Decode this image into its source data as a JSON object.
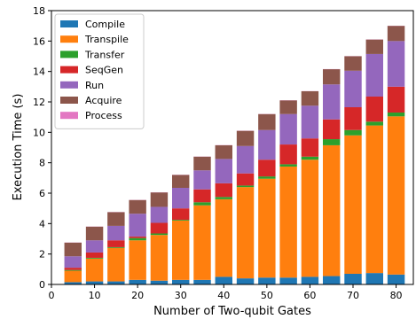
{
  "chart_data": {
    "type": "bar",
    "stacked": true,
    "xlabel": "Number of Two-qubit Gates",
    "ylabel": "Execution Time (s)",
    "xlim": [
      0,
      84
    ],
    "ylim": [
      0,
      18
    ],
    "xticks": [
      0,
      10,
      20,
      30,
      40,
      50,
      60,
      70,
      80
    ],
    "yticks": [
      0,
      2,
      4,
      6,
      8,
      10,
      12,
      14,
      16,
      18
    ],
    "grid": false,
    "legend_position": "top-left",
    "x": [
      5,
      10,
      15,
      20,
      25,
      30,
      35,
      40,
      45,
      50,
      55,
      60,
      65,
      70,
      75,
      80
    ],
    "series": [
      {
        "name": "Compile",
        "color": "#1f77b4",
        "values": [
          0.15,
          0.2,
          0.2,
          0.3,
          0.25,
          0.3,
          0.3,
          0.5,
          0.4,
          0.45,
          0.45,
          0.5,
          0.55,
          0.7,
          0.75,
          0.65
        ]
      },
      {
        "name": "Transpile",
        "color": "#ff7f0e",
        "values": [
          0.75,
          1.5,
          2.2,
          2.6,
          3.0,
          3.9,
          4.9,
          5.1,
          6.0,
          6.5,
          7.3,
          7.7,
          8.6,
          9.1,
          9.7,
          10.4
        ]
      },
      {
        "name": "Transfer",
        "color": "#2ca02c",
        "values": [
          0.05,
          0.05,
          0.05,
          0.15,
          0.1,
          0.05,
          0.2,
          0.15,
          0.1,
          0.15,
          0.15,
          0.2,
          0.4,
          0.35,
          0.25,
          0.25
        ]
      },
      {
        "name": "SeqGen",
        "color": "#d62728",
        "values": [
          0.15,
          0.35,
          0.45,
          0.1,
          0.7,
          0.75,
          0.85,
          0.9,
          0.8,
          1.1,
          1.3,
          1.2,
          1.3,
          1.5,
          1.65,
          1.7
        ]
      },
      {
        "name": "Run",
        "color": "#9467bd",
        "values": [
          0.75,
          0.8,
          0.95,
          1.5,
          1.05,
          1.35,
          1.25,
          1.6,
          1.8,
          1.95,
          2.0,
          2.15,
          2.3,
          2.4,
          2.8,
          3.0
        ]
      },
      {
        "name": "Acquire",
        "color": "#8c564b",
        "values": [
          0.9,
          0.9,
          0.9,
          0.9,
          0.95,
          0.85,
          0.9,
          0.9,
          1.0,
          1.05,
          0.9,
          0.95,
          1.0,
          0.95,
          0.95,
          1.0
        ]
      },
      {
        "name": "Process",
        "color": "#e377c2",
        "values": [
          0.01,
          0.01,
          0.01,
          0.01,
          0.01,
          0.01,
          0.01,
          0.01,
          0.01,
          0.01,
          0.01,
          0.01,
          0.01,
          0.01,
          0.01,
          0.01
        ]
      }
    ]
  }
}
